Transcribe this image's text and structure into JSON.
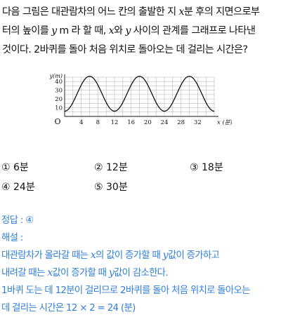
{
  "question": {
    "line1_a": "다음 그림은 대관람차의 어느 칸의 출발한 지 ",
    "line1_var": "x",
    "line1_b": "분 후의 지면으로부",
    "line2_a": "터의 높이를 ",
    "line2_var": "y",
    "line2_b": " m 라 할 때, ",
    "line2_var2": "x",
    "line2_c": "와 ",
    "line2_var3": "y",
    "line2_d": " 사이의 관계를 그래프로 나타낸",
    "line3": "것이다. 2바퀴를 돌아 처음 위치로 돌아오는 데 걸리는 시간은?"
  },
  "chart_data": {
    "type": "line",
    "ylabel": "y(m)",
    "xlabel": "x (분)",
    "origin_label": "O",
    "x_ticks": [
      "4",
      "8",
      "12",
      "16",
      "20",
      "24",
      "28",
      "32"
    ],
    "y_ticks": [
      "10",
      "20",
      "30",
      "40"
    ],
    "xlim": [
      0,
      36
    ],
    "ylim": [
      0,
      45
    ],
    "grid": true,
    "series": [
      {
        "x": [
          0,
          6,
          12,
          18,
          24,
          30,
          36
        ],
        "y": [
          6,
          46,
          6,
          46,
          6,
          46,
          6
        ]
      }
    ]
  },
  "options": [
    {
      "num": "①",
      "text": "6분"
    },
    {
      "num": "②",
      "text": "12분"
    },
    {
      "num": "③",
      "text": "18분"
    },
    {
      "num": "④",
      "text": "24분"
    },
    {
      "num": "⑤",
      "text": "30분"
    }
  ],
  "answer": {
    "line1": "정답 : ④",
    "line2": "해설 :",
    "line3_a": "대관람차가 올라갈 때는 ",
    "line3_var": "x",
    "line3_b": "의 값이 증가할 때 ",
    "line3_var2": "y",
    "line3_c": "값이 증가하고",
    "line4_a": "내려갈 때는 ",
    "line4_var": "x",
    "line4_b": "값이 증가할 때 ",
    "line4_var2": "y",
    "line4_c": "값이 감소한다.",
    "line5": "1바퀴 도는 데 12분이 걸리므로 2바퀴를 돌아 처음 위치로 돌아오는",
    "line6": "데 걸리는 시간은 12 × 2 = 24 (분)"
  },
  "colors": {
    "answer": "#2f7fd8",
    "text": "#111111",
    "grid": "#9a9a9a"
  }
}
